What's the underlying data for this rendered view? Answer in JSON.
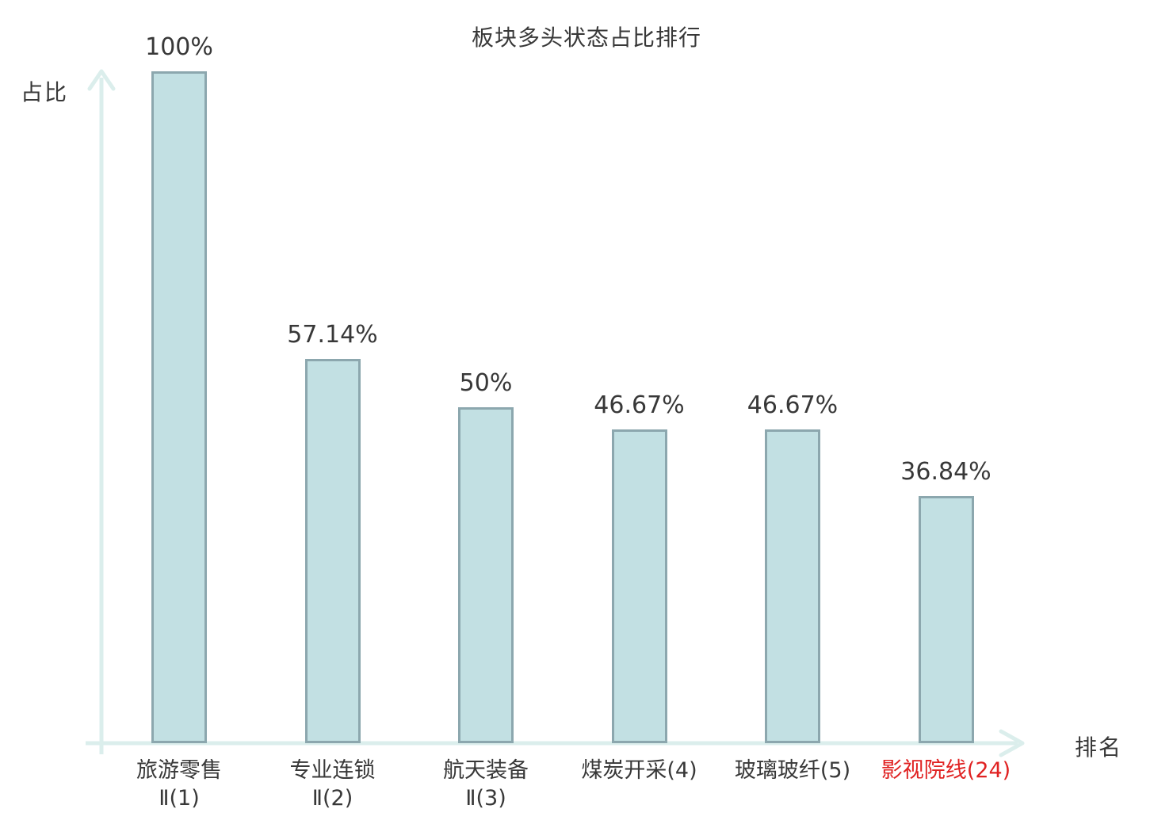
{
  "title": "板块多头状态占比排行",
  "axes": {
    "y_label": "占比",
    "x_label": "排名"
  },
  "colors": {
    "bar_fill": "#c2e0e3",
    "bar_border": "#8ca7ae",
    "axis": "#dbeeec",
    "text": "#383838",
    "highlight": "#e02222"
  },
  "chart_data": {
    "type": "bar",
    "title": "板块多头状态占比排行",
    "xlabel": "排名",
    "ylabel": "占比",
    "ylim": [
      0,
      100
    ],
    "grid": false,
    "legend": null,
    "categories": [
      "旅游零售Ⅱ(1)",
      "专业连锁Ⅱ(2)",
      "航天装备Ⅱ(3)",
      "煤炭开采(4)",
      "玻璃玻纤(5)",
      "影视院线(24)"
    ],
    "values": [
      100,
      57.14,
      50,
      46.67,
      46.67,
      36.84
    ],
    "bars": [
      {
        "label_lines": [
          "旅游零售",
          "Ⅱ(1)"
        ],
        "value": 100,
        "value_label": "100%",
        "highlight": false
      },
      {
        "label_lines": [
          "专业连锁",
          "Ⅱ(2)"
        ],
        "value": 57.14,
        "value_label": "57.14%",
        "highlight": false
      },
      {
        "label_lines": [
          "航天装备",
          "Ⅱ(3)"
        ],
        "value": 50,
        "value_label": "50%",
        "highlight": false
      },
      {
        "label_lines": [
          "煤炭开采(4)"
        ],
        "value": 46.67,
        "value_label": "46.67%",
        "highlight": false
      },
      {
        "label_lines": [
          "玻璃玻纤(5)"
        ],
        "value": 46.67,
        "value_label": "46.67%",
        "highlight": false
      },
      {
        "label_lines": [
          "影视院线(24)"
        ],
        "value": 36.84,
        "value_label": "36.84%",
        "highlight": true
      }
    ]
  }
}
